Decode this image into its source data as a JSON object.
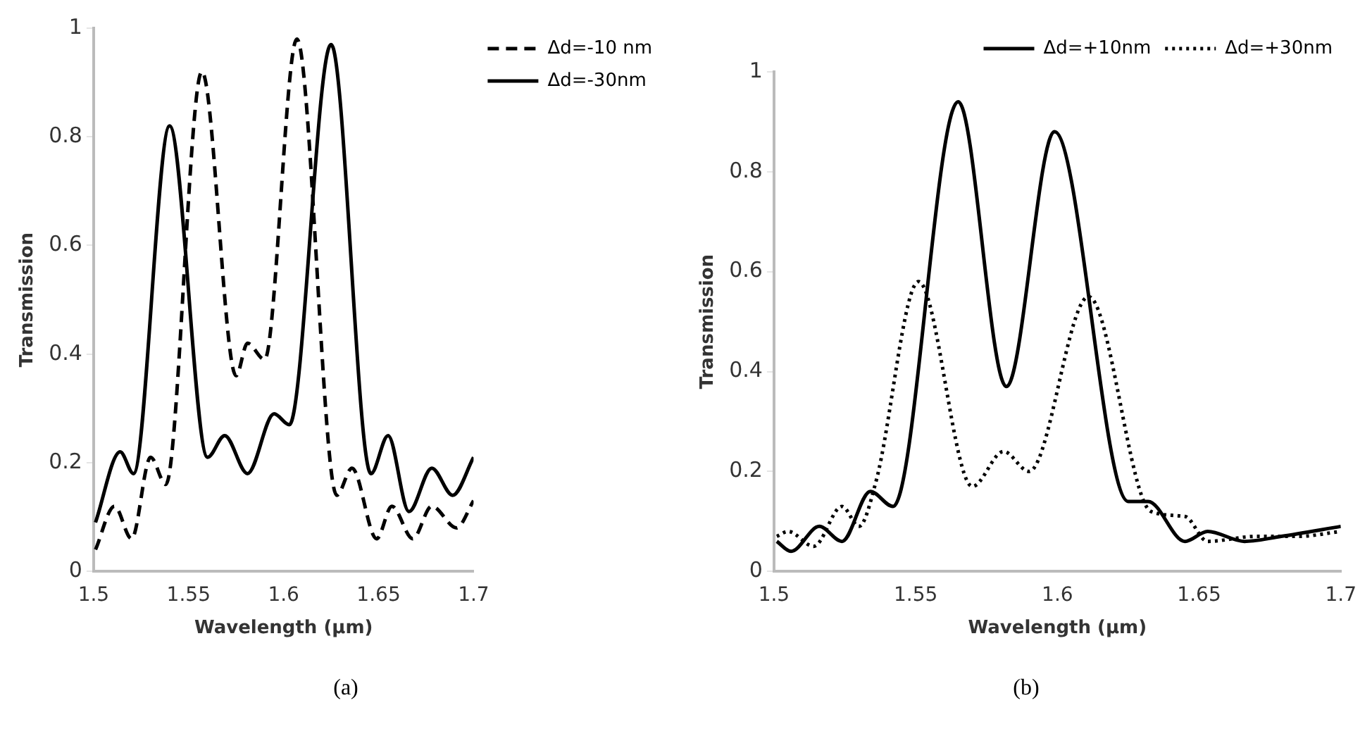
{
  "chart_data": [
    {
      "type": "line",
      "xlabel": "Wavelength (µm)",
      "ylabel": "Transmission",
      "annotations": [
        "(a)"
      ],
      "xlim": [
        1.5,
        1.7
      ],
      "xticks": [
        1.5,
        1.55,
        1.6,
        1.65,
        1.7
      ],
      "ylim": [
        0,
        1
      ],
      "yticks": [
        0,
        0.2,
        0.4,
        0.6,
        0.8,
        1
      ],
      "grid": false,
      "legend": "right",
      "marker": "none",
      "series": [
        {
          "name": "Δd=-10 nm",
          "color": "#000000",
          "line_style": "dashed",
          "x": [
            1.501,
            1.511,
            1.52,
            1.53,
            1.538,
            1.557,
            1.575,
            1.581,
            1.59,
            1.607,
            1.628,
            1.636,
            1.649,
            1.657,
            1.668,
            1.678,
            1.691,
            1.7
          ],
          "values": [
            0.04,
            0.12,
            0.06,
            0.21,
            0.16,
            0.92,
            0.36,
            0.42,
            0.39,
            0.98,
            0.14,
            0.19,
            0.06,
            0.12,
            0.06,
            0.12,
            0.08,
            0.13
          ]
        },
        {
          "name": "Δd=-30nm",
          "color": "#000000",
          "line_style": "solid",
          "x": [
            1.501,
            1.514,
            1.521,
            1.54,
            1.56,
            1.569,
            1.581,
            1.595,
            1.603,
            1.625,
            1.646,
            1.655,
            1.666,
            1.678,
            1.689,
            1.7
          ],
          "values": [
            0.09,
            0.22,
            0.18,
            0.82,
            0.21,
            0.25,
            0.18,
            0.29,
            0.27,
            0.97,
            0.18,
            0.25,
            0.11,
            0.19,
            0.14,
            0.21
          ]
        }
      ]
    },
    {
      "type": "line",
      "xlabel": "Wavelength (µm)",
      "ylabel": "Transmission",
      "annotations": [
        "(b)"
      ],
      "xlim": [
        1.5,
        1.7
      ],
      "xticks": [
        1.5,
        1.55,
        1.6,
        1.65,
        1.7
      ],
      "ylim": [
        0,
        1
      ],
      "yticks": [
        0,
        0.2,
        0.4,
        0.6,
        0.8,
        1
      ],
      "grid": false,
      "legend": "top right",
      "marker": "none",
      "series": [
        {
          "name": "Δd=+10nm",
          "color": "#000000",
          "line_style": "solid",
          "x": [
            1.501,
            1.506,
            1.516,
            1.524,
            1.534,
            1.542,
            1.565,
            1.582,
            1.599,
            1.625,
            1.632,
            1.645,
            1.653,
            1.666,
            1.679,
            1.7
          ],
          "values": [
            0.06,
            0.04,
            0.09,
            0.06,
            0.16,
            0.13,
            0.94,
            0.37,
            0.88,
            0.14,
            0.14,
            0.06,
            0.08,
            0.06,
            0.07,
            0.09
          ]
        },
        {
          "name": "Δd=+30nm",
          "color": "#000000",
          "line_style": "dotted",
          "x": [
            1.501,
            1.505,
            1.514,
            1.524,
            1.53,
            1.536,
            1.551,
            1.57,
            1.581,
            1.59,
            1.611,
            1.633,
            1.645,
            1.653,
            1.67,
            1.685,
            1.7
          ],
          "values": [
            0.07,
            0.08,
            0.05,
            0.13,
            0.09,
            0.18,
            0.58,
            0.17,
            0.24,
            0.2,
            0.55,
            0.12,
            0.11,
            0.06,
            0.07,
            0.07,
            0.08
          ]
        }
      ]
    }
  ]
}
